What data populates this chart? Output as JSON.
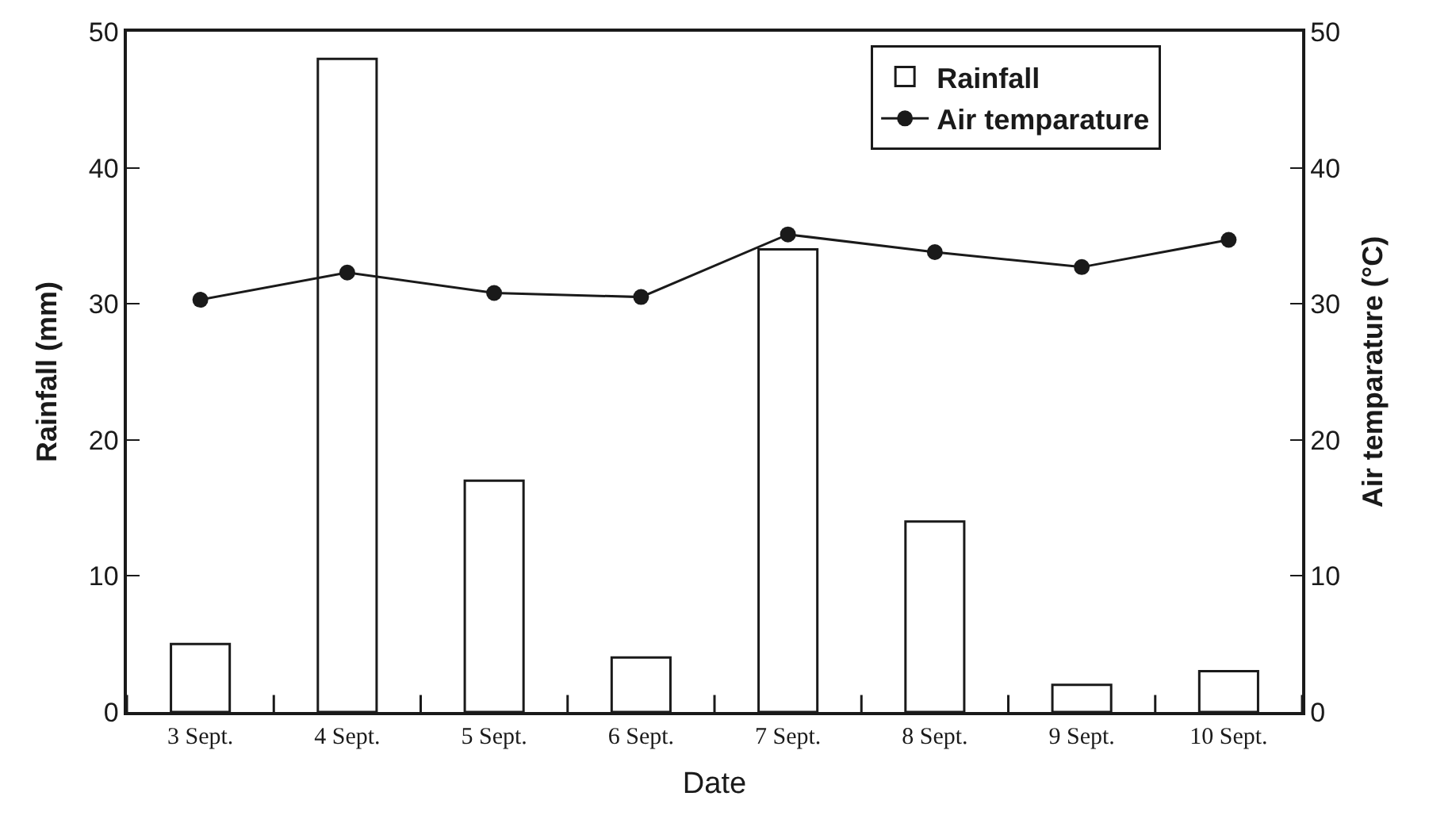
{
  "chart_data": {
    "type": "bar",
    "xlabel": "Date",
    "ylabel": "Rainfall (mm)",
    "y2label": "Air temparature (°C)",
    "categories": [
      "3 Sept.",
      "4 Sept.",
      "5 Sept.",
      "6 Sept.",
      "7 Sept.",
      "8 Sept.",
      "9 Sept.",
      "10 Sept."
    ],
    "series": [
      {
        "name": "Rainfall",
        "color": "#ffffff",
        "values": [
          5,
          48,
          17,
          4,
          34,
          14,
          2,
          3
        ]
      },
      {
        "name": "Air temparature",
        "type": "line",
        "axis": "y2",
        "color": "#1a1a1a",
        "marker": "circle",
        "line_style": "solid",
        "values": [
          30.3,
          32.3,
          30.8,
          30.5,
          35.1,
          33.8,
          32.7,
          34.7
        ]
      }
    ],
    "ylim": [
      0,
      50
    ],
    "yticks": [
      0,
      10,
      20,
      30,
      40,
      50
    ],
    "y2lim": [
      0,
      50
    ],
    "y2ticks": [
      0,
      10,
      20,
      30,
      40,
      50
    ],
    "legend": "top right"
  }
}
